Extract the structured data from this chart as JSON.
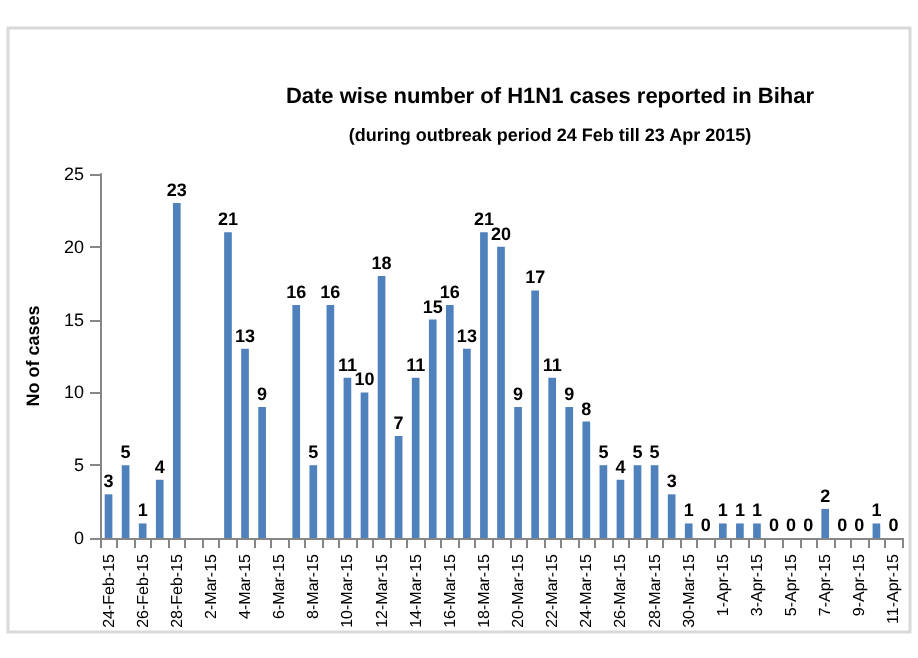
{
  "chart_data": {
    "type": "bar",
    "title": "Date wise number of H1N1 cases reported in Bihar",
    "subtitle": "(during outbreak period 24 Feb till 23 Apr 2015)",
    "ylabel": "No of cases",
    "categories": [
      "24-Feb-15",
      null,
      "26-Feb-15",
      null,
      "28-Feb-15",
      null,
      "2-Mar-15",
      null,
      "4-Mar-15",
      null,
      "6-Mar-15",
      null,
      "8-Mar-15",
      null,
      "10-Mar-15",
      null,
      "12-Mar-15",
      null,
      "14-Mar-15",
      null,
      "16-Mar-15",
      null,
      "18-Mar-15",
      null,
      "20-Mar-15",
      null,
      "22-Mar-15",
      null,
      "24-Mar-15",
      null,
      "26-Mar-15",
      null,
      "28-Mar-15",
      null,
      "30-Mar-15",
      null,
      "1-Apr-15",
      null,
      "3-Apr-15",
      null,
      "5-Apr-15",
      null,
      "7-Apr-15",
      null,
      "9-Apr-15",
      null,
      "11-Apr-15"
    ],
    "values": [
      3,
      5,
      1,
      4,
      23,
      null,
      null,
      21,
      13,
      9,
      null,
      16,
      5,
      16,
      11,
      10,
      18,
      7,
      11,
      15,
      16,
      13,
      21,
      20,
      9,
      17,
      11,
      9,
      8,
      5,
      4,
      5,
      5,
      3,
      1,
      0,
      1,
      1,
      1,
      0,
      0,
      0,
      2,
      0,
      0,
      1,
      0
    ],
    "color": "#4f81bd",
    "ylim": [
      0,
      25
    ],
    "yticks": [
      0,
      5,
      10,
      15,
      20,
      25
    ],
    "grid": false,
    "data_labels": true
  }
}
